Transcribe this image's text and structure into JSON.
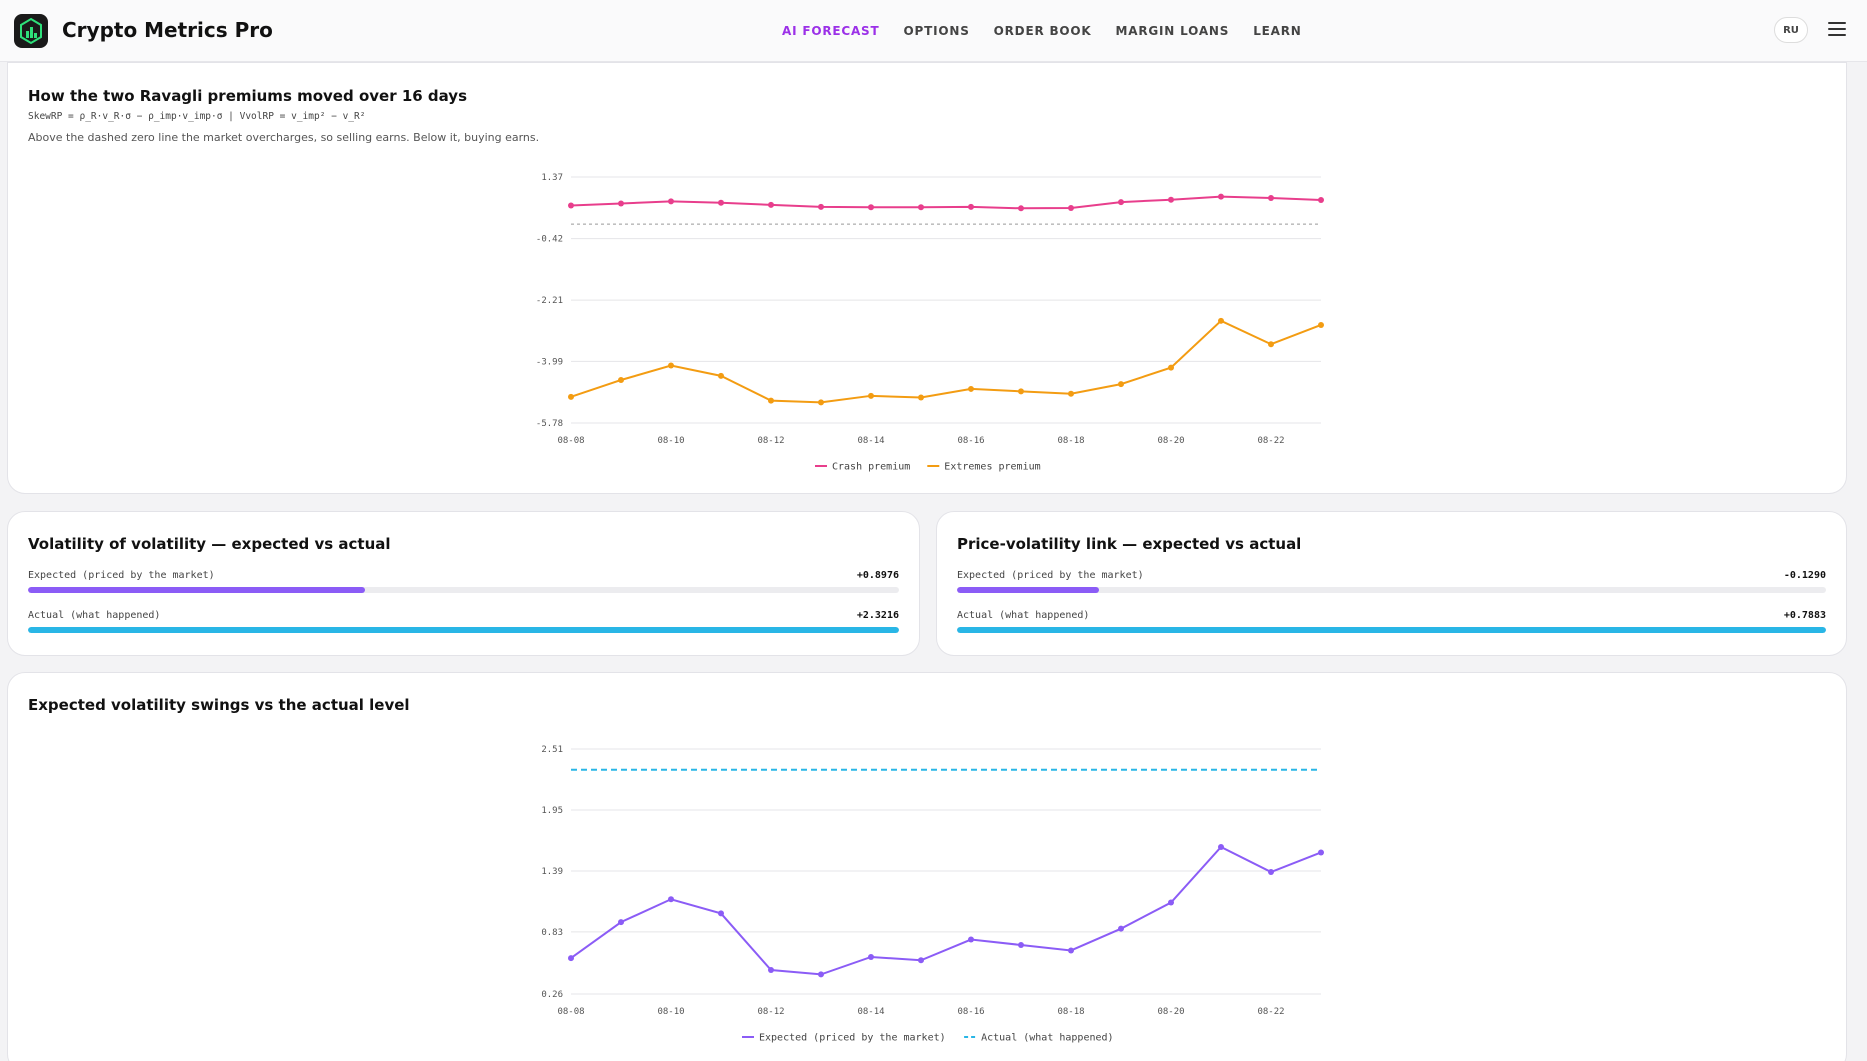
{
  "app": {
    "title": "Crypto Metrics Pro",
    "lang": "RU"
  },
  "nav": [
    {
      "label": "AI FORECAST",
      "active": true
    },
    {
      "label": "OPTIONS",
      "active": false
    },
    {
      "label": "ORDER BOOK",
      "active": false
    },
    {
      "label": "MARGIN LOANS",
      "active": false
    },
    {
      "label": "LEARN",
      "active": false
    }
  ],
  "colors": {
    "accent": "#9b30e8",
    "crash": "#e83e8c",
    "extremes": "#f39c12",
    "expected": "#8b5cf6",
    "actual": "#29b6e6"
  },
  "premiums": {
    "title": "How the two Ravagli premiums moved over 16 days",
    "formula": "SkewRP = ρ_R·v_R·σ − ρ_imp·v_imp·σ | VvolRP = v_imp² − v_R²",
    "description": "Above the dashed zero line the market overcharges, so selling earns. Below it, buying earns.",
    "chart_data": {
      "type": "line",
      "x": [
        "08-08",
        "08-09",
        "08-10",
        "08-11",
        "08-12",
        "08-13",
        "08-14",
        "08-15",
        "08-16",
        "08-17",
        "08-18",
        "08-19",
        "08-20",
        "08-21",
        "08-22",
        "08-23"
      ],
      "xticks": [
        "08-08",
        "08-10",
        "08-12",
        "08-14",
        "08-16",
        "08-18",
        "08-20",
        "08-22"
      ],
      "yticks": [
        "1.37",
        "-0.42",
        "-2.21",
        "-3.99",
        "-5.78"
      ],
      "ylim": [
        -5.78,
        1.37
      ],
      "zero_line": 0,
      "series": [
        {
          "name": "Crash premium",
          "color": "#e83e8c",
          "values": [
            0.54,
            0.6,
            0.66,
            0.62,
            0.56,
            0.5,
            0.49,
            0.49,
            0.5,
            0.46,
            0.47,
            0.64,
            0.71,
            0.8,
            0.76,
            0.7
          ]
        },
        {
          "name": "Extremes premium",
          "color": "#f39c12",
          "values": [
            -5.02,
            -4.53,
            -4.11,
            -4.41,
            -5.13,
            -5.18,
            -4.99,
            -5.04,
            -4.79,
            -4.86,
            -4.93,
            -4.65,
            -4.17,
            -2.81,
            -3.49,
            -2.93
          ]
        }
      ]
    }
  },
  "volofvol": {
    "title": "Volatility of volatility — expected vs actual",
    "rows": [
      {
        "label": "Expected (priced by the market)",
        "value": "+0.8976",
        "fraction": 0.3866,
        "color": "#8b5cf6"
      },
      {
        "label": "Actual (what happened)",
        "value": "+2.3216",
        "fraction": 1.0,
        "color": "#29b6e6"
      }
    ]
  },
  "pricevol": {
    "title": "Price-volatility link — expected vs actual",
    "rows": [
      {
        "label": "Expected (priced by the market)",
        "value": "-0.1290",
        "fraction": 0.1637,
        "color": "#8b5cf6"
      },
      {
        "label": "Actual (what happened)",
        "value": "+0.7883",
        "fraction": 1.0,
        "color": "#29b6e6"
      }
    ]
  },
  "swings": {
    "title": "Expected volatility swings vs the actual level",
    "chart_data": {
      "type": "line",
      "x": [
        "08-08",
        "08-09",
        "08-10",
        "08-11",
        "08-12",
        "08-13",
        "08-14",
        "08-15",
        "08-16",
        "08-17",
        "08-18",
        "08-19",
        "08-20",
        "08-21",
        "08-22",
        "08-23"
      ],
      "xticks": [
        "08-08",
        "08-10",
        "08-12",
        "08-14",
        "08-16",
        "08-18",
        "08-20",
        "08-22"
      ],
      "yticks": [
        "2.51",
        "1.95",
        "1.39",
        "0.83",
        "0.26"
      ],
      "ylim": [
        0.26,
        2.51
      ],
      "series": [
        {
          "name": "Expected (priced by the market)",
          "color": "#8b5cf6",
          "values": [
            0.59,
            0.92,
            1.13,
            1.0,
            0.48,
            0.44,
            0.6,
            0.57,
            0.76,
            0.71,
            0.66,
            0.86,
            1.1,
            1.61,
            1.38,
            1.56
          ]
        },
        {
          "name": "Actual (what happened)",
          "color": "#29b6e6",
          "dashed": true,
          "values": [
            2.32,
            2.32,
            2.32,
            2.32,
            2.32,
            2.32,
            2.32,
            2.32,
            2.32,
            2.32,
            2.32,
            2.32,
            2.32,
            2.32,
            2.32,
            2.32
          ]
        }
      ]
    }
  }
}
